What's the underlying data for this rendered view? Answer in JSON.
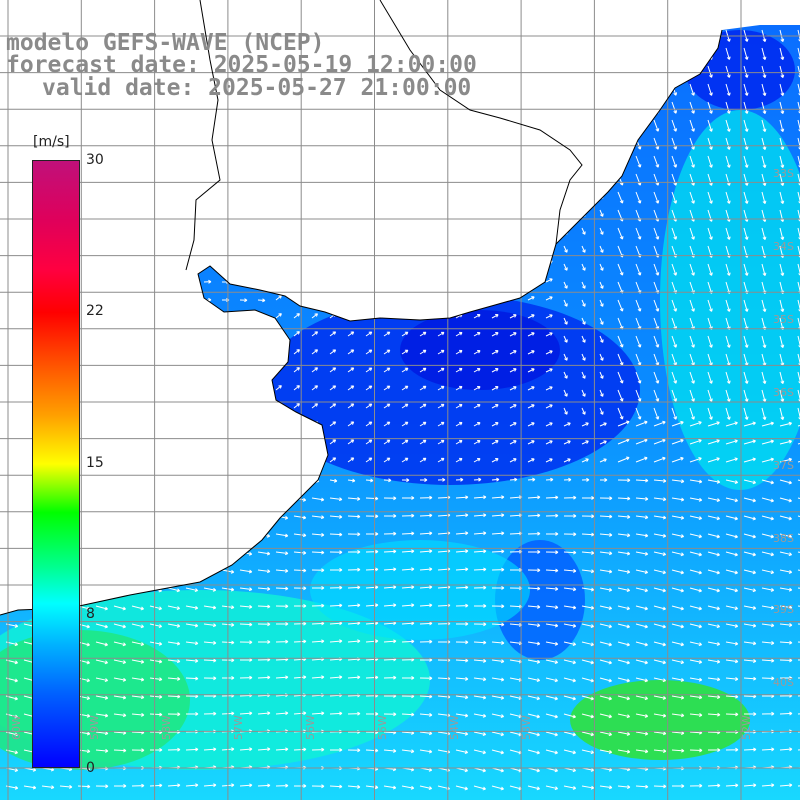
{
  "title": {
    "line1": "modelo GEFS-WAVE (NCEP)",
    "line2": "forecast date: 2025-05-19 12:00:00",
    "line3": "valid date: 2025-05-27 21:00:00"
  },
  "colorbar": {
    "units": "[m/s]",
    "ticks": [
      "30",
      "22",
      "15",
      "8",
      "0"
    ],
    "min": 0,
    "max": 30
  },
  "lat_labels": [
    "33S",
    "34S",
    "35S",
    "36S",
    "37S",
    "38S",
    "39S",
    "40S"
  ],
  "lon_labels": [
    "60W",
    "59W",
    "58W",
    "57W",
    "56W",
    "55W",
    "54W",
    "53W",
    "52W"
  ],
  "colors": {
    "land": "#ffffff",
    "grid": "#8c8c8c",
    "coast": "#000000",
    "arrow": "#ffffff"
  }
}
